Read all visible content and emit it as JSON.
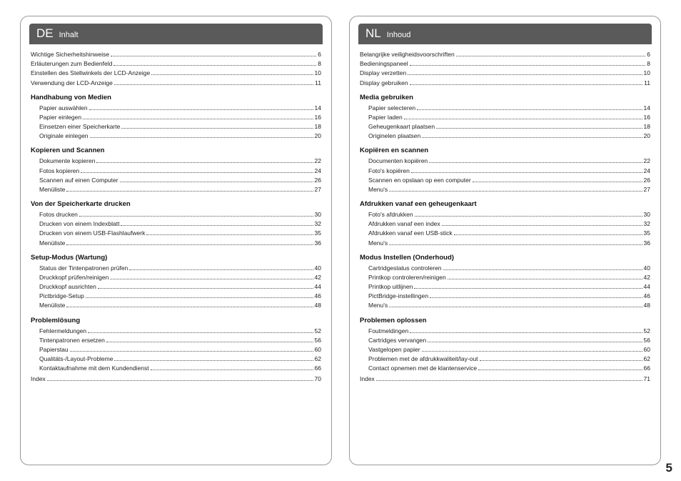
{
  "pageNumber": "5",
  "colors": {
    "headerBg": "#5a5a5a",
    "headerFg": "#ffffff",
    "border": "#999999",
    "text": "#222222"
  },
  "left": {
    "langCode": "DE",
    "title": "Inhalt",
    "top": [
      {
        "label": "Wichtige Sicherheitshinweise",
        "page": "6"
      },
      {
        "label": "Erläuterungen zum Bedienfeld",
        "page": "8"
      },
      {
        "label": "Einstellen des Stellwinkels der LCD-Anzeige",
        "page": "10"
      },
      {
        "label": "Verwendung der LCD-Anzeige",
        "page": "11"
      }
    ],
    "sections": [
      {
        "heading": "Handhabung von Medien",
        "items": [
          {
            "label": "Papier auswählen",
            "page": "14"
          },
          {
            "label": "Papier einlegen",
            "page": "16"
          },
          {
            "label": "Einsetzen einer Speicherkarte",
            "page": "18"
          },
          {
            "label": "Originale einlegen",
            "page": "20"
          }
        ]
      },
      {
        "heading": "Kopieren und Scannen",
        "items": [
          {
            "label": "Dokumente kopieren",
            "page": "22"
          },
          {
            "label": "Fotos kopieren",
            "page": "24"
          },
          {
            "label": "Scannen auf einen Computer",
            "page": "26"
          },
          {
            "label": "Menüliste",
            "page": "27"
          }
        ]
      },
      {
        "heading": "Von der Speicherkarte drucken",
        "items": [
          {
            "label": "Fotos drucken",
            "page": "30"
          },
          {
            "label": "Drucken von einem Indexblatt",
            "page": "32"
          },
          {
            "label": "Drucken von einem USB-Flashlaufwerk",
            "page": "35"
          },
          {
            "label": "Menüliste",
            "page": "36"
          }
        ]
      },
      {
        "heading": "Setup-Modus (Wartung)",
        "items": [
          {
            "label": "Status der Tintenpatronen prüfen",
            "page": "40"
          },
          {
            "label": "Druckkopf prüfen/reinigen",
            "page": "42"
          },
          {
            "label": "Druckkopf ausrichten",
            "page": "44"
          },
          {
            "label": "Pictbridge-Setup",
            "page": "46"
          },
          {
            "label": "Menüliste",
            "page": "48"
          }
        ]
      },
      {
        "heading": "Problemlösung",
        "items": [
          {
            "label": "Fehlermeldungen",
            "page": "52"
          },
          {
            "label": "Tintenpatronen ersetzen",
            "page": "56"
          },
          {
            "label": "Papierstau",
            "page": "60"
          },
          {
            "label": "Qualitäts-/Layout-Probleme",
            "page": "62"
          },
          {
            "label": "Kontaktaufnahme mit dem Kundendienst",
            "page": "66"
          }
        ]
      }
    ],
    "bottom": [
      {
        "label": "Index",
        "page": "70"
      }
    ]
  },
  "right": {
    "langCode": "NL",
    "title": "Inhoud",
    "top": [
      {
        "label": "Belangrijke veiligheidsvoorschriften",
        "page": "6"
      },
      {
        "label": "Bedieningspaneel",
        "page": "8"
      },
      {
        "label": "Display verzetten",
        "page": "10"
      },
      {
        "label": "Display gebruiken",
        "page": "11"
      }
    ],
    "sections": [
      {
        "heading": "Media gebruiken",
        "items": [
          {
            "label": "Papier selecteren",
            "page": "14"
          },
          {
            "label": "Papier laden",
            "page": "16"
          },
          {
            "label": "Geheugenkaart plaatsen",
            "page": "18"
          },
          {
            "label": "Originelen plaatsen",
            "page": "20"
          }
        ]
      },
      {
        "heading": "Kopiëren en scannen",
        "items": [
          {
            "label": "Documenten kopiëren",
            "page": "22"
          },
          {
            "label": "Foto's kopiëren",
            "page": "24"
          },
          {
            "label": "Scannen en opslaan op een computer",
            "page": "26"
          },
          {
            "label": "Menu's",
            "page": "27"
          }
        ]
      },
      {
        "heading": "Afdrukken vanaf een geheugenkaart",
        "items": [
          {
            "label": "Foto's afdrukken",
            "page": "30"
          },
          {
            "label": "Afdrukken vanaf een index",
            "page": "32"
          },
          {
            "label": "Afdrukken vanaf een USB-stick",
            "page": "35"
          },
          {
            "label": "Menu's",
            "page": "36"
          }
        ]
      },
      {
        "heading": "Modus Instellen (Onderhoud)",
        "items": [
          {
            "label": "Cartridgestatus controleren",
            "page": "40"
          },
          {
            "label": "Printkop controleren/reinigen",
            "page": "42"
          },
          {
            "label": "Printkop uitlijnen",
            "page": "44"
          },
          {
            "label": "PictBridge-instellingen",
            "page": "46"
          },
          {
            "label": "Menu's",
            "page": "48"
          }
        ]
      },
      {
        "heading": "Problemen oplossen",
        "items": [
          {
            "label": "Foutmeldingen",
            "page": "52"
          },
          {
            "label": "Cartridges vervangen",
            "page": "56"
          },
          {
            "label": "Vastgelopen papier",
            "page": "60"
          },
          {
            "label": "Problemen met de afdrukkwaliteit/lay-out",
            "page": "62"
          },
          {
            "label": "Contact opnemen met de klantenservice",
            "page": "66"
          }
        ]
      }
    ],
    "bottom": [
      {
        "label": "Index",
        "page": "71"
      }
    ]
  }
}
